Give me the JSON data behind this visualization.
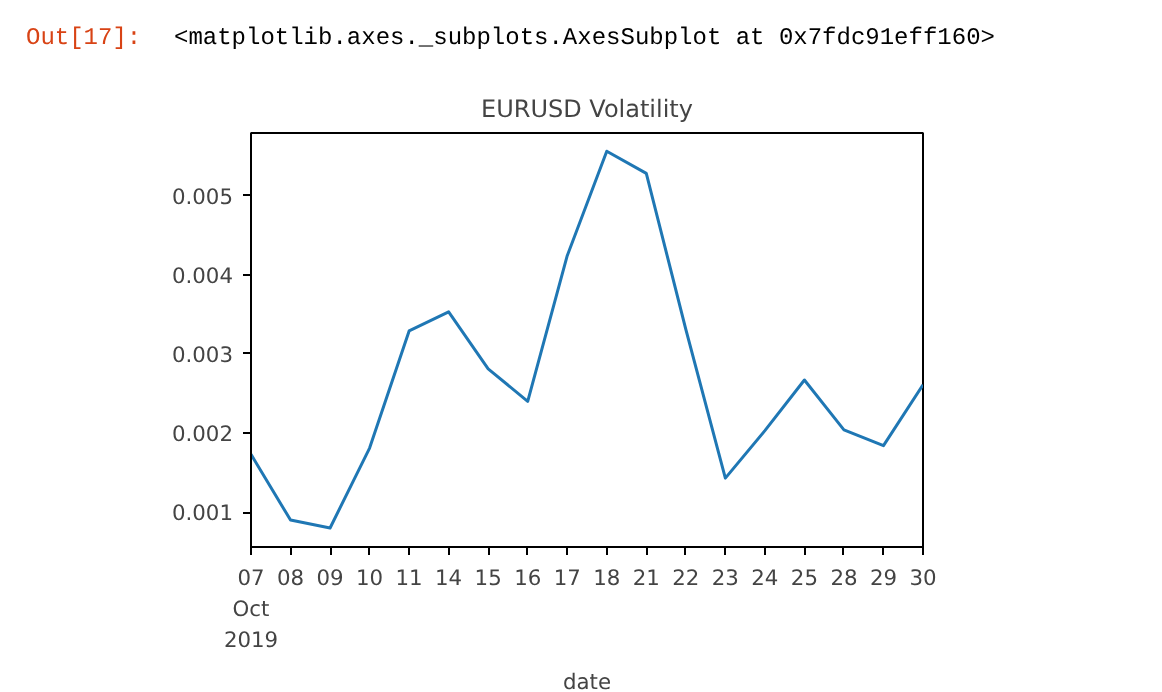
{
  "chart_data": {
    "type": "line",
    "title": "EURUSD Volatility",
    "xlabel": "date",
    "annotations": [
      "Out[17]:",
      "<matplotlib.axes._subplots.AxesSubplot at 0x7fdc91eff160>"
    ],
    "categories": [
      "07\nOct\n2019",
      "08",
      "09",
      "10",
      "11",
      "14",
      "15",
      "16",
      "17",
      "18",
      "21",
      "22",
      "23",
      "24",
      "25",
      "28",
      "29",
      "30"
    ],
    "series": [
      {
        "color": "#1f77b4",
        "values": [
          0.00173,
          0.0009,
          0.0008,
          0.00181,
          0.00329,
          0.00353,
          0.00281,
          0.0024,
          0.00424,
          0.00556,
          0.00528,
          0.00331,
          0.00143,
          0.00203,
          0.00267,
          0.00204,
          0.00184,
          0.00261
        ]
      }
    ],
    "ylim": [
      0.00056,
      0.00579
    ],
    "yticks": [
      0.001,
      0.002,
      0.003,
      0.004,
      0.005
    ],
    "grid": false
  }
}
